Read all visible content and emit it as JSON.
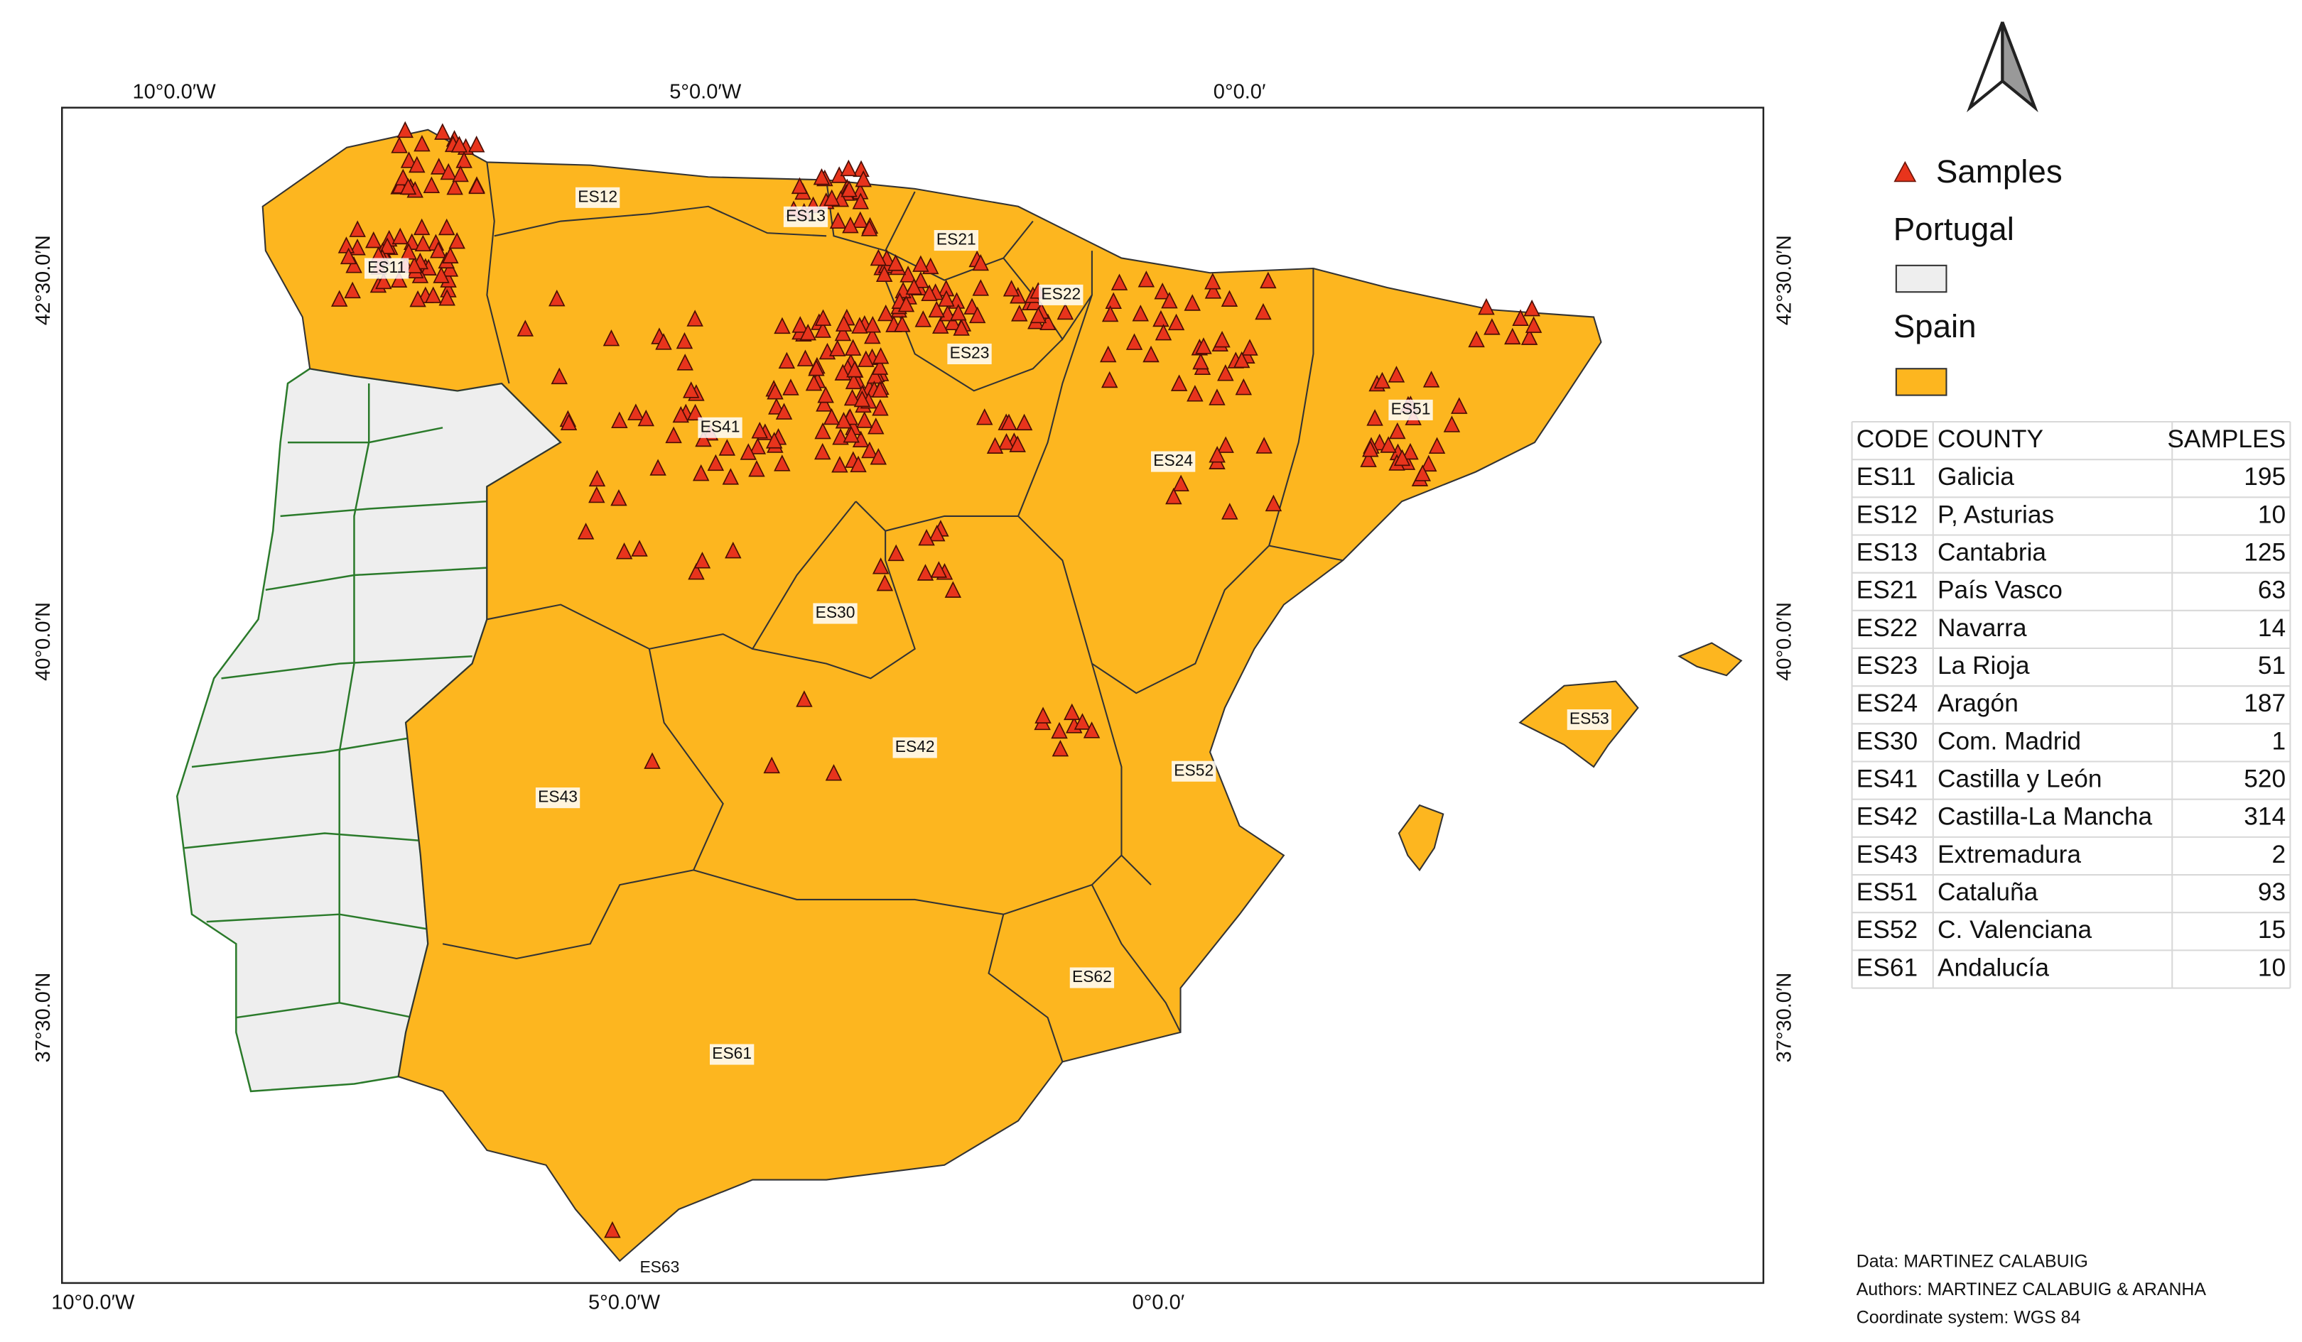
{
  "map": {
    "axis_labels": {
      "top": [
        "10°0.0′W",
        "5°0.0′W",
        "0°0.0′"
      ],
      "bottom": [
        "10°0.0′W",
        "5°0.0′W",
        "0°0.0′"
      ],
      "left": [
        "42°30.0′N",
        "40°0.0′N",
        "37°30.0′N"
      ],
      "right": [
        "42°30.0′N",
        "40°0.0′N",
        "37°30.0′N"
      ]
    },
    "region_labels": [
      "ES11",
      "ES12",
      "ES13",
      "ES21",
      "ES22",
      "ES23",
      "ES24",
      "ES30",
      "ES41",
      "ES42",
      "ES43",
      "ES51",
      "ES52",
      "ES53",
      "ES61",
      "ES62",
      "ES63"
    ],
    "legend": {
      "samples": "Samples",
      "portugal": "Portugal",
      "spain": "Spain"
    },
    "table": {
      "header": [
        "CODE",
        "COUNTY",
        "SAMPLES"
      ],
      "rows": [
        [
          "ES11",
          "Galicia",
          195
        ],
        [
          "ES12",
          "P, Asturias",
          10
        ],
        [
          "ES13",
          "Cantabria",
          125
        ],
        [
          "ES21",
          "País Vasco",
          63
        ],
        [
          "ES22",
          "Navarra",
          14
        ],
        [
          "ES23",
          "La Rioja",
          51
        ],
        [
          "ES24",
          "Aragón",
          187
        ],
        [
          "ES30",
          "Com. Madrid",
          1
        ],
        [
          "ES41",
          "Castilla y León",
          520
        ],
        [
          "ES42",
          "Castilla-La Mancha",
          314
        ],
        [
          "ES43",
          "Extremadura",
          2
        ],
        [
          "ES51",
          "Cataluña",
          93
        ],
        [
          "ES52",
          "C. Valenciana",
          15
        ],
        [
          "ES61",
          "Andalucía",
          10
        ]
      ]
    },
    "credits": [
      "Data: MARTINEZ CALABUIG",
      "Authors: MARTINEZ CALABUIG & ARANHA",
      "Coordinate system: WGS 84"
    ]
  }
}
